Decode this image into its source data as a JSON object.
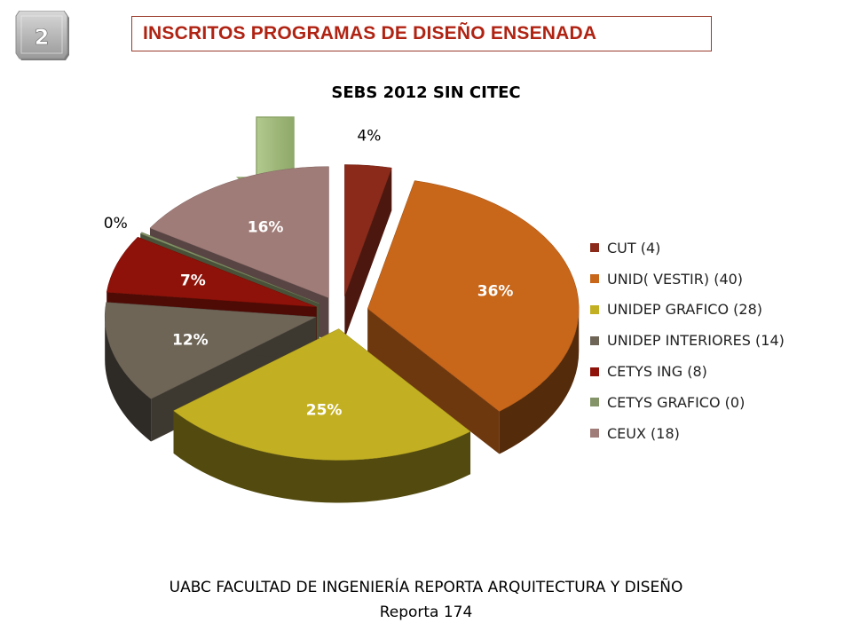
{
  "slide": {
    "number": "2",
    "heading": "INSCRITOS PROGRAMAS DE DISEÑO ENSENADA",
    "footer_line1": "UABC FACULTAD DE INGENIERÍA REPORTA  ARQUITECTURA Y DISEÑO",
    "footer_line2": "Reporta 174"
  },
  "chart_data": {
    "type": "pie",
    "title": "SEBS 2012 SIN CITEC",
    "legend_position": "right",
    "slices": [
      {
        "legend": "CUT (4)",
        "value": 4,
        "label": "4%",
        "color": "#8b2a1a"
      },
      {
        "legend": "UNID( VESTIR) (40)",
        "value": 40,
        "label": "36%",
        "color": "#c8661a"
      },
      {
        "legend": "UNIDEP GRAFICO  (28)",
        "value": 28,
        "label": "25%",
        "color": "#c3b022"
      },
      {
        "legend": "UNIDEP INTERIORES (14)",
        "value": 14,
        "label": "12%",
        "color": "#6e6557"
      },
      {
        "legend": "CETYS ING (8)",
        "value": 8,
        "label": "7%",
        "color": "#8e1209"
      },
      {
        "legend": "CETYS GRAFICO (0)",
        "value": 0,
        "label": "0%",
        "color": "#849468"
      },
      {
        "legend": "CEUX (18)",
        "value": 18,
        "label": "16%",
        "color": "#a07c78"
      }
    ]
  },
  "decor": {
    "arrow_color": "#9fb87a",
    "badge_color": "#b0b0b0"
  }
}
